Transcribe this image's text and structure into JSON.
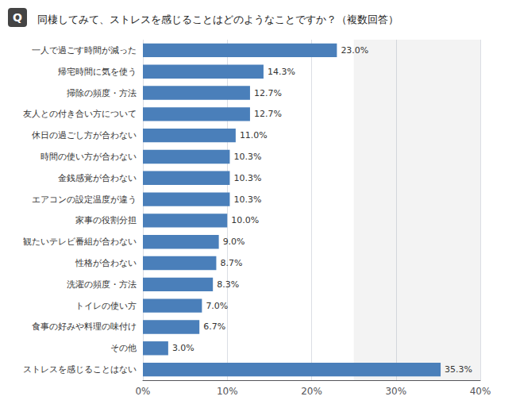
{
  "chart_data": {
    "type": "bar",
    "orientation": "horizontal",
    "title": "同棲してみて、ストレスを感じることはどのようなことですか？（複数回答）",
    "annotations": [
      "Q"
    ],
    "categories": [
      "一人で過ごす時間が減った",
      "帰宅時間に気を使う",
      "掃除の頻度・方法",
      "友人との付き合い方について",
      "休日の過ごし方が合わない",
      "時間の使い方が合わない",
      "金銭感覚が合わない",
      "エアコンの設定温度が違う",
      "家事の役割分担",
      "観たいテレビ番組が合わない",
      "性格が合わない",
      "洗濯の頻度・方法",
      "トイレの使い方",
      "食事の好みや料理の味付け",
      "その他",
      "ストレスを感じることはない"
    ],
    "values": [
      23.0,
      14.3,
      12.7,
      12.7,
      11.0,
      10.3,
      10.3,
      10.3,
      10.0,
      9.0,
      8.7,
      8.3,
      7.0,
      6.7,
      3.0,
      35.3
    ],
    "value_labels": [
      "23.0%",
      "14.3%",
      "12.7%",
      "12.7%",
      "11.0%",
      "10.3%",
      "10.3%",
      "10.3%",
      "10.0%",
      "9.0%",
      "8.7%",
      "8.3%",
      "7.0%",
      "6.7%",
      "3.0%",
      "35.3%"
    ],
    "data_labels": true,
    "color": "#4a7fba",
    "xlim": [
      0,
      40
    ],
    "xticks": [
      {
        "value": 0,
        "label": "0%"
      },
      {
        "value": 10,
        "label": "10%"
      },
      {
        "value": 20,
        "label": "20%"
      },
      {
        "value": 30,
        "label": "30%"
      },
      {
        "value": 40,
        "label": "40%"
      }
    ],
    "highlight_range": [
      25,
      40
    ],
    "grid": true
  }
}
